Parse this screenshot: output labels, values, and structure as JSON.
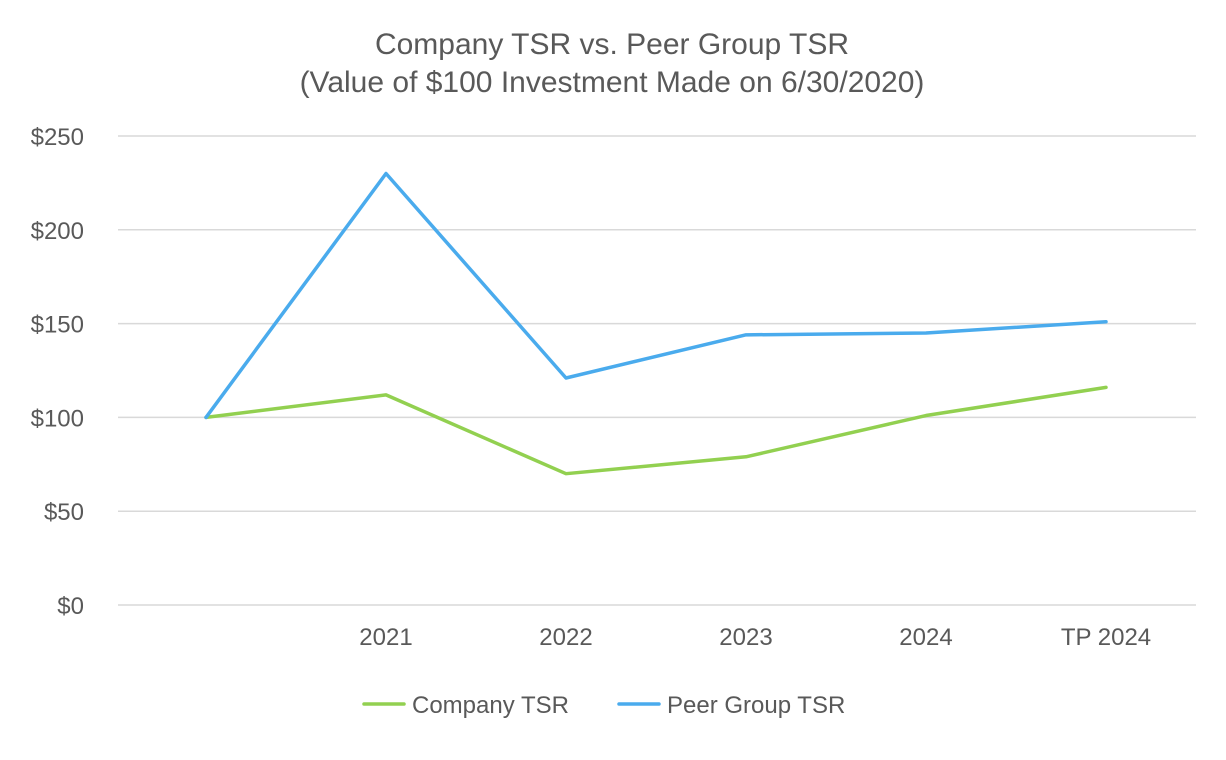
{
  "chart_data": {
    "type": "line",
    "title": "Company TSR vs. Peer Group TSR",
    "subtitle": "(Value of $100 Investment Made on 6/30/2020)",
    "categories": [
      "",
      "2021",
      "2022",
      "2023",
      "2024",
      "TP 2024"
    ],
    "series": [
      {
        "name": "Company TSR",
        "color": "#92d050",
        "values": [
          100,
          112,
          70,
          79,
          101,
          116
        ]
      },
      {
        "name": "Peer Group TSR",
        "color": "#4aabed",
        "values": [
          100,
          230,
          121,
          144,
          145,
          151
        ]
      }
    ],
    "ylim": [
      0,
      250
    ],
    "yticks": [
      0,
      50,
      100,
      150,
      200,
      250
    ],
    "ytick_labels": [
      "$0",
      "$50",
      "$100",
      "$150",
      "$200",
      "$250"
    ],
    "xlabel": "",
    "ylabel": "",
    "grid": true,
    "legend_position": "bottom-center"
  }
}
